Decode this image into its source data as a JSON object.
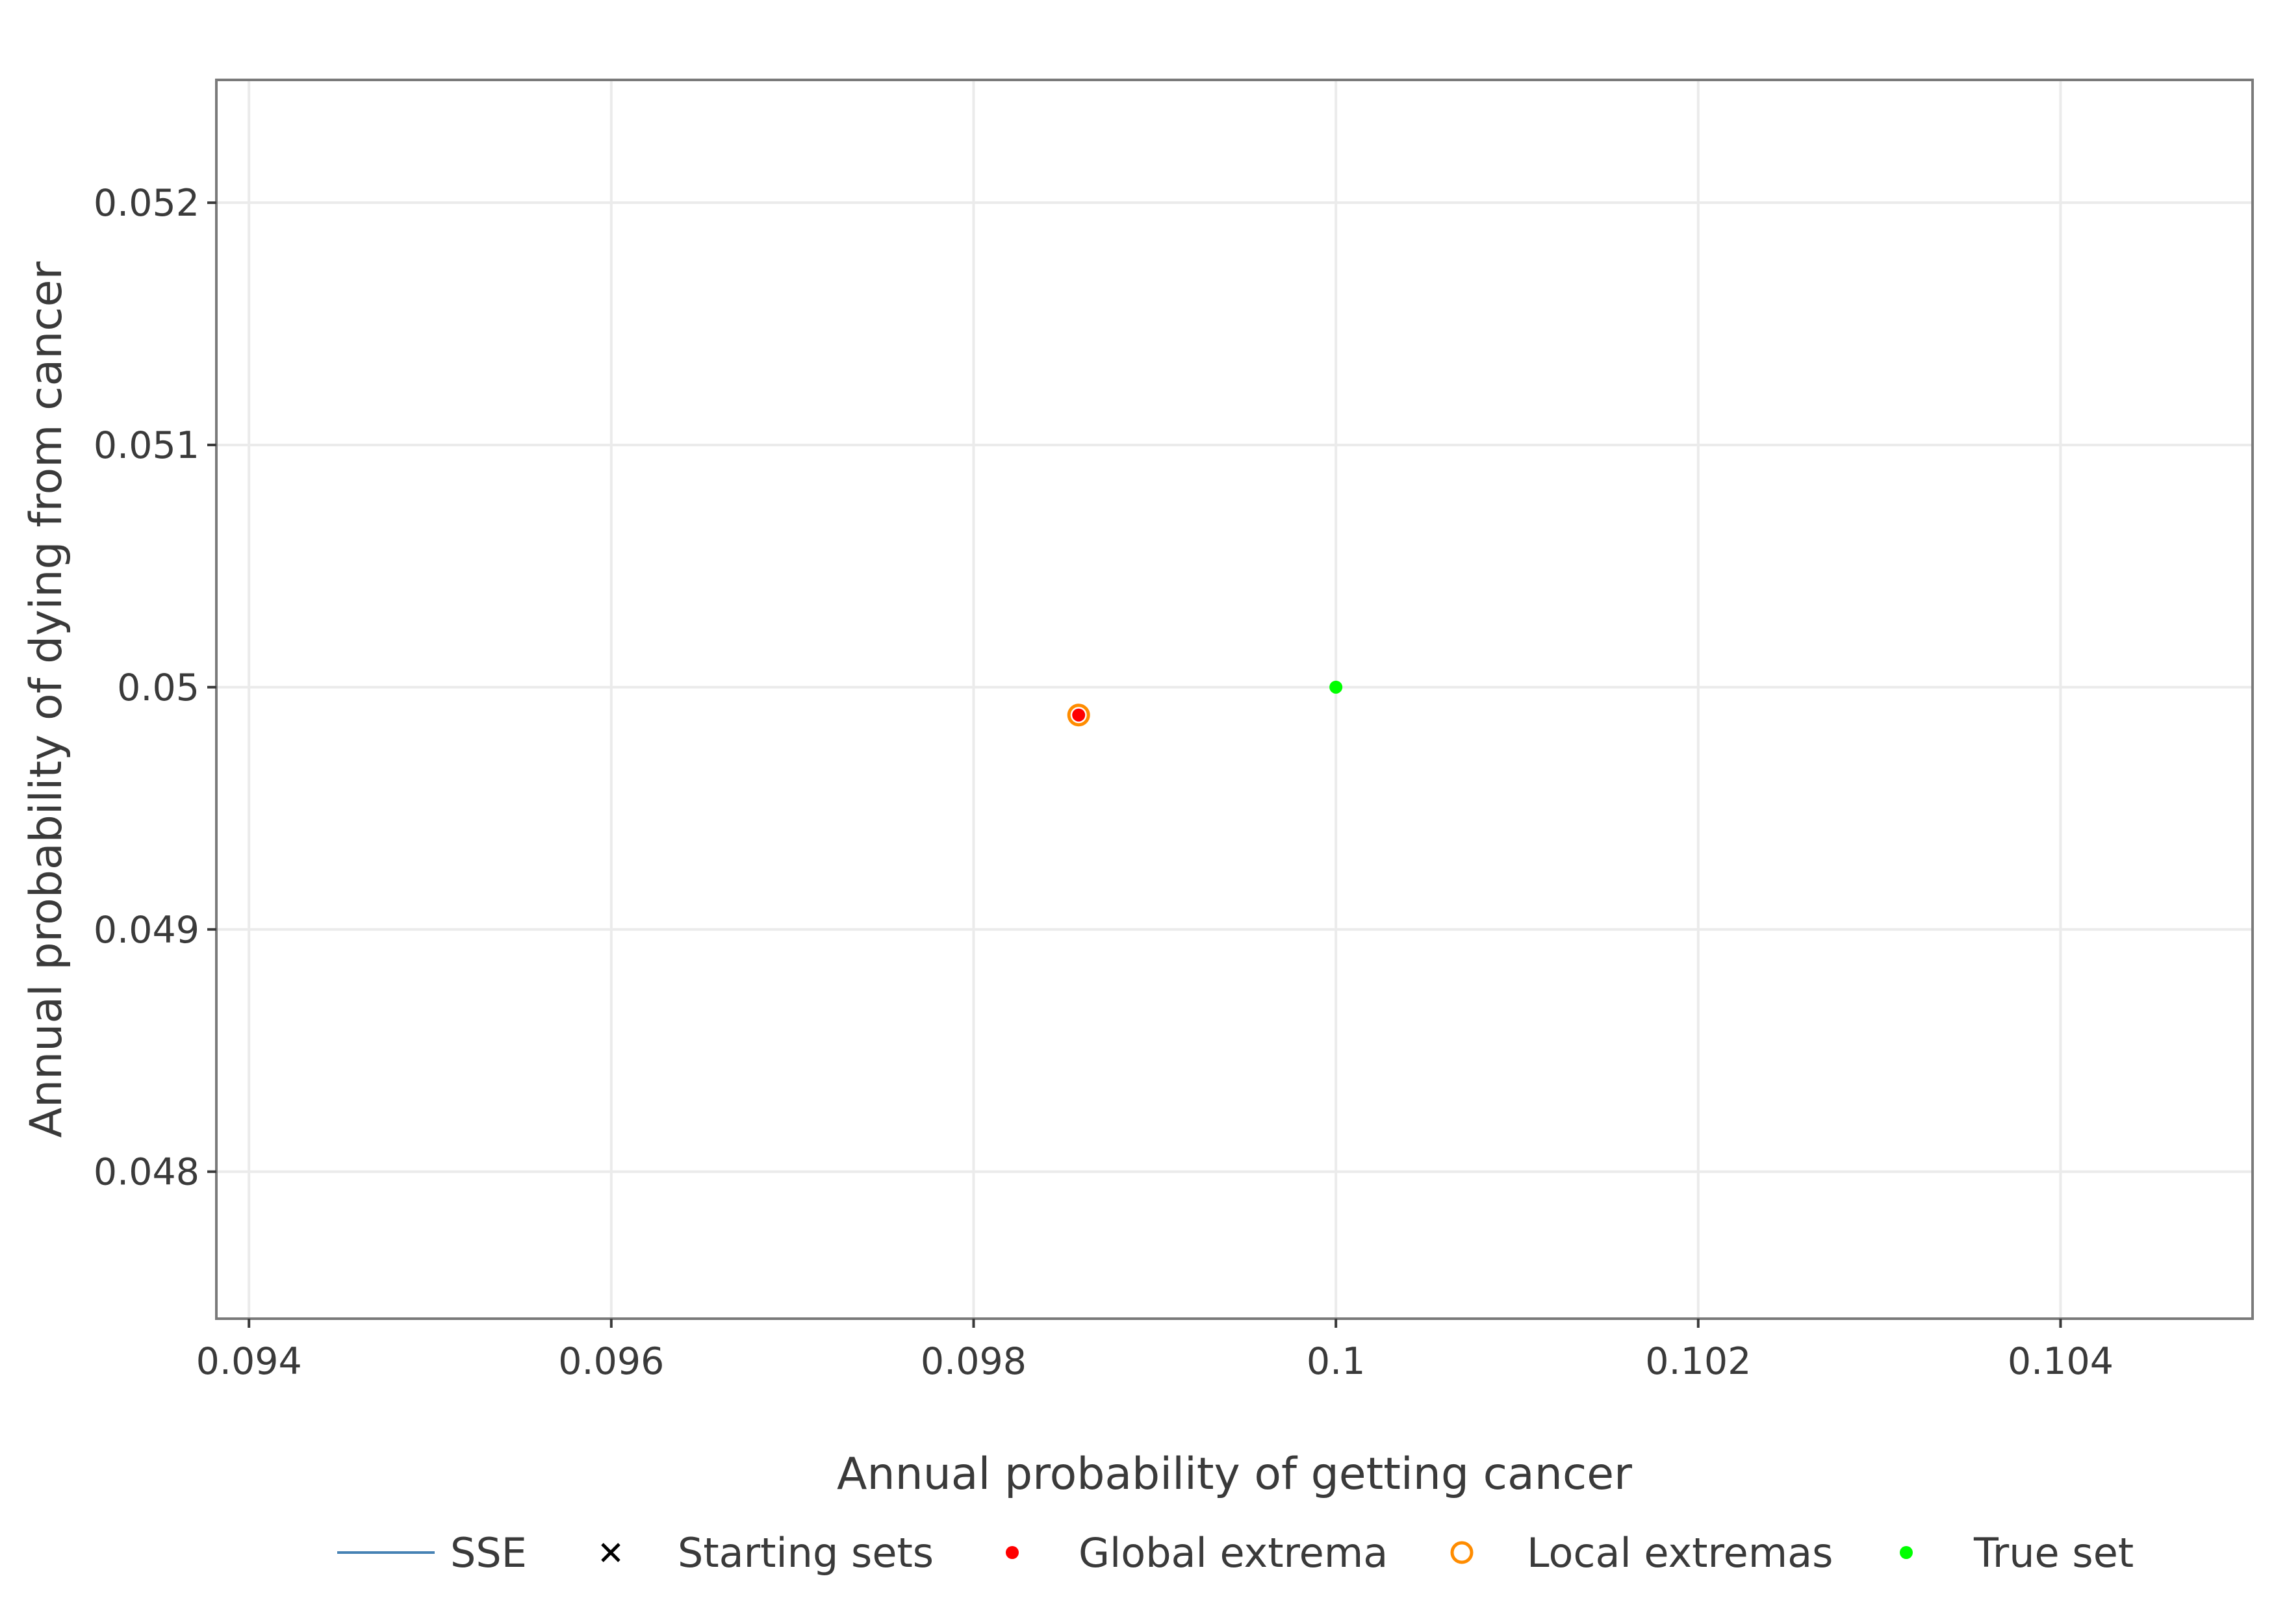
{
  "chart_data": {
    "type": "scatter",
    "xlabel": "Annual probability of getting cancer",
    "ylabel": "Annual probability of dying from cancer",
    "xlim": [
      0.09382,
      0.10506
    ],
    "ylim": [
      0.047393,
      0.052507
    ],
    "x_ticks": [
      0.094,
      0.096,
      0.098,
      0.1,
      0.102,
      0.104
    ],
    "x_tick_labels": [
      "0.094",
      "0.096",
      "0.098",
      "0.1",
      "0.102",
      "0.104"
    ],
    "y_ticks": [
      0.048,
      0.049,
      0.05,
      0.051,
      0.052
    ],
    "y_tick_labels": [
      "0.048",
      "0.049",
      "0.05",
      "0.051",
      "0.052"
    ],
    "grid": true,
    "legend_position": "bottom",
    "series": [
      {
        "name": "SSE",
        "marker": "line",
        "color": "#4682b4",
        "points": []
      },
      {
        "name": "Starting sets",
        "marker": "cross",
        "color": "#000000",
        "points": []
      },
      {
        "name": "Global extrema",
        "marker": "filled-circle",
        "color": "#ff0000",
        "points": [
          [
            0.09858,
            0.049885
          ]
        ]
      },
      {
        "name": "Local extremas",
        "marker": "open-circle",
        "color": "#ff8c00",
        "points": [
          [
            0.09858,
            0.049885
          ]
        ]
      },
      {
        "name": "True set",
        "marker": "filled-circle",
        "color": "#00ff00",
        "points": [
          [
            0.1,
            0.05
          ]
        ]
      }
    ]
  }
}
